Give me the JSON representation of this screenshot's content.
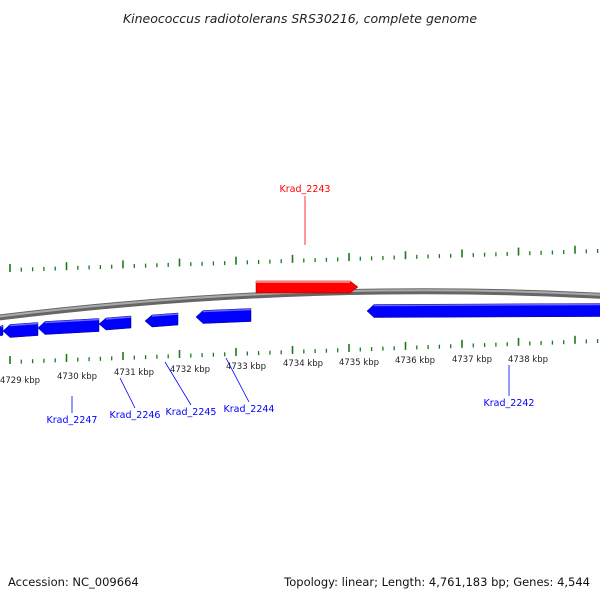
{
  "title": "Kineococcus radiotolerans SRS30216, complete genome",
  "accession": "Accession: NC_009664",
  "summary": "Topology: linear; Length: 4,761,183 bp; Genes: 4,544",
  "colors": {
    "forward_gene": "#ff0000",
    "reverse_gene": "#0000ff",
    "ticks": "#1a7a1a",
    "backbone": "#888888"
  },
  "ticks": [
    {
      "label": "4729 kbp"
    },
    {
      "label": "4730 kbp"
    },
    {
      "label": "4731 kbp"
    },
    {
      "label": "4732 kbp"
    },
    {
      "label": "4733 kbp"
    },
    {
      "label": "4734 kbp"
    },
    {
      "label": "4735 kbp"
    },
    {
      "label": "4736 kbp"
    },
    {
      "label": "4737 kbp"
    },
    {
      "label": "4738 kbp"
    }
  ],
  "genes": [
    {
      "label": "Krad_2243",
      "strand": "forward"
    },
    {
      "label": "Krad_2247",
      "strand": "reverse"
    },
    {
      "label": "Krad_2246",
      "strand": "reverse"
    },
    {
      "label": "Krad_2245",
      "strand": "reverse"
    },
    {
      "label": "Krad_2244",
      "strand": "reverse"
    },
    {
      "label": "Krad_2242",
      "strand": "reverse"
    }
  ]
}
